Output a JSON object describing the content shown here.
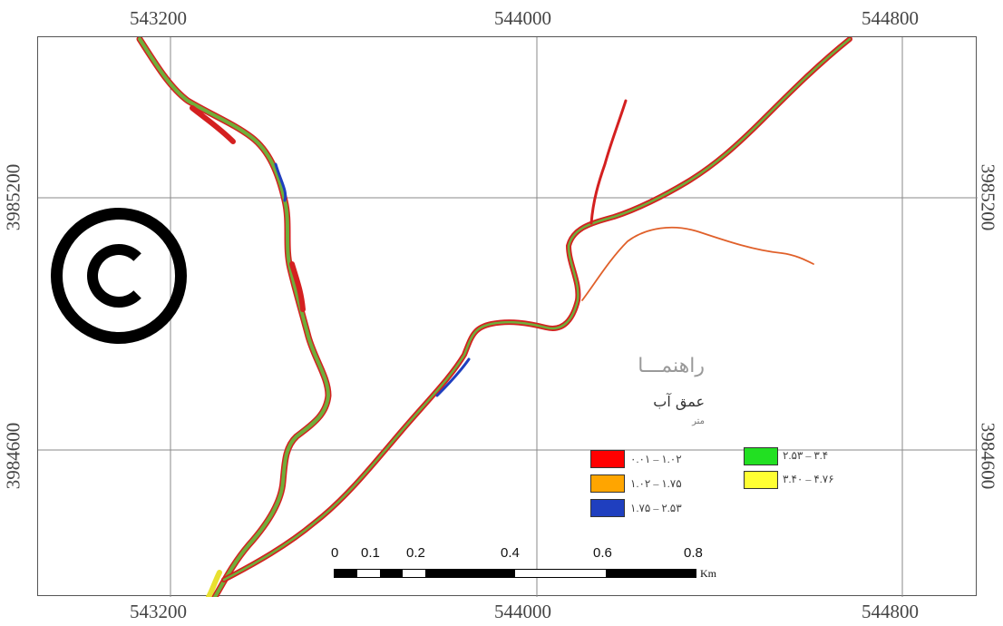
{
  "map": {
    "x_ticks": [
      "543200",
      "544000",
      "544800"
    ],
    "y_ticks": [
      "3985200",
      "3984600"
    ],
    "copyright_symbol": "©",
    "colors": {
      "frame": "#555555",
      "grid": "#8a8a8a",
      "river_main": "#6fae3a",
      "river_edge": "#d42020"
    }
  },
  "legend": {
    "title": "راهنمـــا",
    "subtitle": "عمق آب",
    "unit": "متر",
    "classes": [
      {
        "label": "۰.۰۱ – ۱.۰۲",
        "color": "#ff0000"
      },
      {
        "label": "۱.۰۲ – ۱.۷۵",
        "color": "#ffa500"
      },
      {
        "label": "۱.۷۵ – ۲.۵۳",
        "color": "#1f3fbf"
      },
      {
        "label": "۲.۵۳ – ۳.۴",
        "color": "#22e022"
      },
      {
        "label": "۳.۴۰ – ۴.۷۶",
        "color": "#ffff33"
      }
    ]
  },
  "scalebar": {
    "labels": [
      "0",
      "0.1",
      "0.2",
      "0.4",
      "0.6",
      "0.8"
    ],
    "unit": "Km"
  }
}
